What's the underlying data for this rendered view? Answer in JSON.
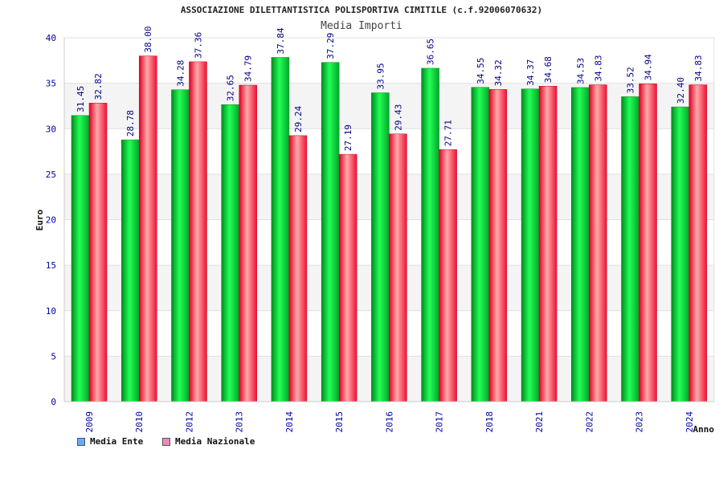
{
  "chart_data": {
    "type": "bar",
    "title": "ASSOCIAZIONE DILETTANTISTICA POLISPORTIVA CIMITILE (c.f.92006070632)",
    "subtitle": "Media Importi",
    "xlabel": "Anno",
    "ylabel": "Euro",
    "ylim": [
      0,
      40
    ],
    "yticks": [
      0,
      5,
      10,
      15,
      20,
      25,
      30,
      35,
      40
    ],
    "grid": true,
    "legend_position": "bottom-left",
    "categories": [
      "2009",
      "2010",
      "2012",
      "2013",
      "2014",
      "2015",
      "2016",
      "2017",
      "2018",
      "2021",
      "2022",
      "2023",
      "2024"
    ],
    "series": [
      {
        "name": "Media Ente",
        "color": "#00cc33",
        "legend_color": "#66aaff",
        "values": [
          31.45,
          28.78,
          34.28,
          32.65,
          37.84,
          37.29,
          33.95,
          36.65,
          34.55,
          34.37,
          34.53,
          33.52,
          32.4
        ],
        "labels": [
          "31.45",
          "28.78",
          "34.28",
          "32.65",
          "37.84",
          "37.29",
          "33.95",
          "36.65",
          "34.55",
          "34.37",
          "34.53",
          "33.52",
          "32.40"
        ]
      },
      {
        "name": "Media Nazionale",
        "color": "#ee1133",
        "legend_color": "#ee88bb",
        "values": [
          32.82,
          38.0,
          37.36,
          34.79,
          29.24,
          27.19,
          29.43,
          27.71,
          34.32,
          34.68,
          34.83,
          34.94,
          34.83
        ],
        "labels": [
          "32.82",
          "38.00",
          "37.36",
          "34.79",
          "29.24",
          "27.19",
          "29.43",
          "27.71",
          "34.32",
          "34.68",
          "34.83",
          "34.94",
          "34.83"
        ]
      }
    ]
  }
}
